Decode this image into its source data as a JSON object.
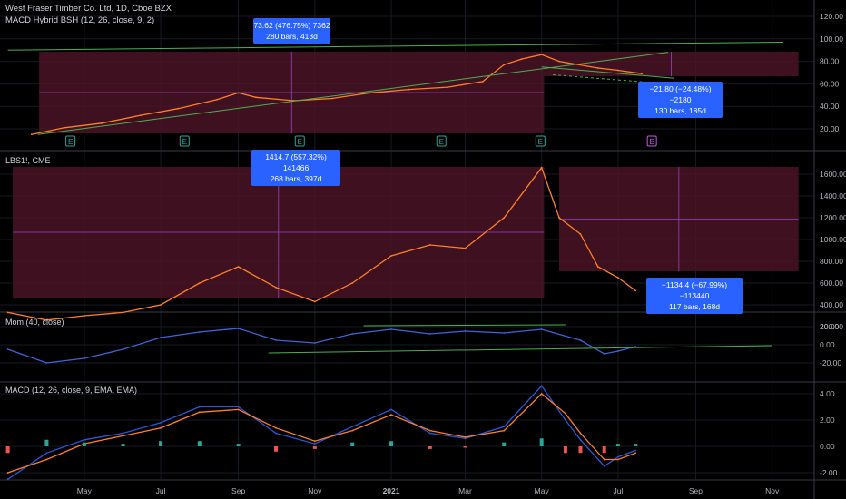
{
  "header": {
    "symbol_title": "West Fraser Timber Co. Ltd, 1D, Cboe BZX",
    "indicator_title": "MACD Hybrid BSH (12, 26, close, 9, 2)"
  },
  "panes": {
    "lumber_title": "LBS1!, CME",
    "mom_title": "Mom (40, close)",
    "macd_title": "MACD (12, 26, close, 9, EMA, EMA)"
  },
  "measurements": {
    "price_up": {
      "line1": "73.62 (476.75%) 7362",
      "line2": "280 bars, 413d"
    },
    "price_down": {
      "line1": "−21.80 (−24.48%) −2180",
      "line2": "130 bars, 185d"
    },
    "lumber_up": {
      "line1": "1414.7 (557.32%) 141466",
      "line2": "268 bars, 397d"
    },
    "lumber_down": {
      "line1": "−1134.4 (−67.99%) −113440",
      "line2": "117 bars, 168d"
    }
  },
  "earnings_marker": "E",
  "colors": {
    "background": "#000000",
    "range_fill": "#4a1426",
    "lumber_line": "#ff7f27",
    "mom_line": "#3f63d8",
    "macd_line": "#2a57d8",
    "signal_line": "#ff7f27",
    "trendline": "#4caf50",
    "measure_box": "#2962ff",
    "hist_up": "#26a69a",
    "hist_down": "#ef5350"
  },
  "chart_data": [
    {
      "type": "line",
      "title": "West Fraser Timber Co. Ltd, 1D, Cboe BZX",
      "x": [
        "2020-03-20",
        "2020-04-15",
        "2020-05-15",
        "2020-06-15",
        "2020-07-15",
        "2020-08-15",
        "2020-09-01",
        "2020-09-15",
        "2020-10-15",
        "2020-11-15",
        "2020-12-15",
        "2021-01-15",
        "2021-02-15",
        "2021-03-15",
        "2021-04-01",
        "2021-04-15",
        "2021-05-01",
        "2021-05-15",
        "2021-06-15",
        "2021-07-01",
        "2021-07-20"
      ],
      "series": [
        {
          "values": [
            15,
            21,
            25,
            32,
            38,
            46,
            52,
            48,
            45,
            47,
            52,
            55,
            57,
            62,
            77,
            82,
            86,
            80,
            74,
            72,
            69
          ]
        }
      ],
      "ylim": [
        10,
        128
      ],
      "y_ticks": [
        "20.00",
        "40.00",
        "60.00",
        "80.00",
        "100.00",
        "120.00"
      ],
      "x_ticks": [
        "May",
        "Jul",
        "Sep",
        "Nov",
        "2021",
        "Mar",
        "May",
        "Jul",
        "Sep",
        "Nov"
      ],
      "grid": true
    },
    {
      "type": "line",
      "title": "LBS1!, CME",
      "x": [
        "2020-03-01",
        "2020-04-01",
        "2020-05-01",
        "2020-06-01",
        "2020-07-01",
        "2020-08-01",
        "2020-09-01",
        "2020-10-01",
        "2020-11-01",
        "2020-12-01",
        "2021-01-01",
        "2021-02-01",
        "2021-03-01",
        "2021-04-01",
        "2021-05-01",
        "2021-05-15",
        "2021-06-01",
        "2021-06-15",
        "2021-07-01",
        "2021-07-15"
      ],
      "series": [
        {
          "values": [
            330,
            260,
            300,
            330,
            400,
            600,
            750,
            560,
            430,
            600,
            850,
            950,
            920,
            1200,
            1660,
            1200,
            1050,
            750,
            650,
            530
          ]
        }
      ],
      "ylim": [
        150,
        1700
      ],
      "y_ticks": [
        "200.00",
        "400.00",
        "600.00",
        "800.00",
        "1000.00",
        "1200.00",
        "1400.00",
        "1600.00"
      ]
    },
    {
      "type": "line",
      "title": "Mom (40, close)",
      "x": [
        "2020-03-01",
        "2020-04-01",
        "2020-05-01",
        "2020-06-01",
        "2020-07-01",
        "2020-08-01",
        "2020-09-01",
        "2020-10-01",
        "2020-11-01",
        "2020-12-01",
        "2021-01-01",
        "2021-02-01",
        "2021-03-01",
        "2021-04-01",
        "2021-05-01",
        "2021-06-01",
        "2021-06-20",
        "2021-07-01",
        "2021-07-15"
      ],
      "series": [
        {
          "values": [
            -5,
            -20,
            -15,
            -5,
            8,
            14,
            18,
            5,
            2,
            12,
            17,
            12,
            15,
            13,
            17,
            5,
            -10,
            -7,
            -2
          ]
        }
      ],
      "ylim": [
        -30,
        28
      ],
      "y_ticks": [
        "-20.00",
        "0.00",
        "20.00"
      ]
    },
    {
      "type": "line",
      "title": "MACD (12, 26, close, 9, EMA, EMA)",
      "x": [
        "2020-03-01",
        "2020-04-01",
        "2020-05-01",
        "2020-06-01",
        "2020-07-01",
        "2020-08-01",
        "2020-09-01",
        "2020-10-01",
        "2020-11-01",
        "2020-12-01",
        "2021-01-01",
        "2021-02-01",
        "2021-03-01",
        "2021-04-01",
        "2021-05-01",
        "2021-05-20",
        "2021-06-01",
        "2021-06-20",
        "2021-07-01",
        "2021-07-15"
      ],
      "series": [
        {
          "values": [
            -2.5,
            -0.5,
            0.5,
            1.0,
            1.8,
            3.0,
            3.0,
            1.0,
            0.2,
            1.5,
            2.8,
            1.0,
            0.6,
            1.5,
            4.6,
            2.0,
            0.5,
            -1.5,
            -0.8,
            -0.3
          ]
        },
        {
          "values": [
            -2.0,
            -1.0,
            0.2,
            0.8,
            1.4,
            2.6,
            2.8,
            1.4,
            0.4,
            1.2,
            2.4,
            1.2,
            0.7,
            1.2,
            4.0,
            2.5,
            1.0,
            -1.0,
            -1.0,
            -0.5
          ]
        }
      ],
      "ylim": [
        -2.4,
        5
      ],
      "y_ticks": [
        "-2.00",
        "0.00",
        "2.00",
        "4.00"
      ]
    }
  ]
}
